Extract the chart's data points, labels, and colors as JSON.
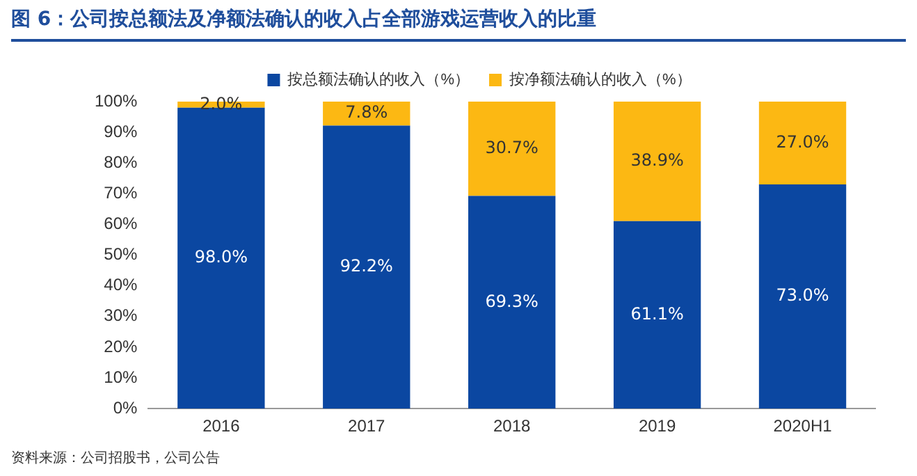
{
  "chart_data": {
    "type": "bar",
    "stacked": true,
    "title": "图 6：公司按总额法及净额法确认的收入占全部游戏运营收入的比重",
    "categories": [
      "2016",
      "2017",
      "2018",
      "2019",
      "2020H1"
    ],
    "series": [
      {
        "name": "按总额法确认的收入（%）",
        "color": "#0b47a1",
        "values": [
          98.0,
          92.2,
          69.3,
          61.1,
          73.0
        ],
        "value_labels": [
          "98.0%",
          "92.2%",
          "69.3%",
          "61.1%",
          "73.0%"
        ]
      },
      {
        "name": "按净额法确认的收入（%）",
        "color": "#fcb813",
        "values": [
          2.0,
          7.8,
          30.7,
          38.9,
          27.0
        ],
        "value_labels": [
          "2.0%",
          "7.8%",
          "30.7%",
          "38.9%",
          "27.0%"
        ]
      }
    ],
    "ylim": [
      0,
      100
    ],
    "yticks": [
      {
        "value": 0,
        "label": "0%"
      },
      {
        "value": 10,
        "label": "10%"
      },
      {
        "value": 20,
        "label": "20%"
      },
      {
        "value": 30,
        "label": "30%"
      },
      {
        "value": 40,
        "label": "40%"
      },
      {
        "value": 50,
        "label": "50%"
      },
      {
        "value": 60,
        "label": "60%"
      },
      {
        "value": 70,
        "label": "70%"
      },
      {
        "value": 80,
        "label": "80%"
      },
      {
        "value": 90,
        "label": "90%"
      },
      {
        "value": 100,
        "label": "100%"
      }
    ],
    "grid": false,
    "legend": "top",
    "annotations": [
      "资料来源：公司招股书，公司公告"
    ]
  }
}
